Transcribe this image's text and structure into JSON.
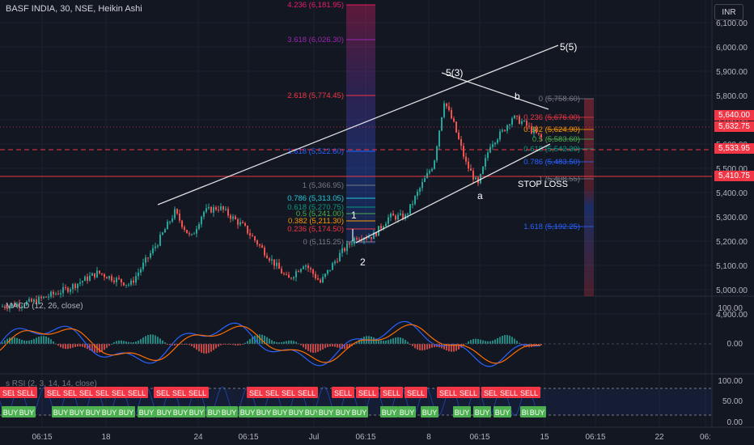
{
  "symbol_title": "BASF INDIA, 30, NSE, Heikin Ashi",
  "currency": "INR",
  "price_axis": [
    "6,100.00",
    "6,000.00",
    "5,900.00",
    "5,800.00",
    "5,700.00",
    "5,600.00",
    "5,500.00",
    "5,400.00",
    "5,300.00",
    "5,200.00",
    "5,100.00",
    "5,000.00",
    "4,900.00"
  ],
  "price_labels": [
    {
      "text": "5,640.00",
      "color": "#f23645"
    },
    {
      "text": "5,632.75",
      "color": "#f23645"
    },
    {
      "text": "5,533.95",
      "color": "#f23645"
    },
    {
      "text": "5,410.75",
      "color": "#f23645"
    }
  ],
  "fib_upper": [
    {
      "text": "4.236 (6,181.95)",
      "color": "#e91e63"
    },
    {
      "text": "3.618 (6,026.30)",
      "color": "#9c27b0"
    },
    {
      "text": "2.618 (5,774.45)",
      "color": "#f23645"
    },
    {
      "text": "1.618 (5,522.60)",
      "color": "#2962ff"
    },
    {
      "text": "1 (5,366.95)",
      "color": "#787b86"
    },
    {
      "text": "0.786 (5,313.05)",
      "color": "#26c6da"
    },
    {
      "text": "0.618 (5,270.75)",
      "color": "#089981"
    },
    {
      "text": "0.5 (5,241.00)",
      "color": "#4caf50"
    },
    {
      "text": "0.382 (5,211.30)",
      "color": "#ff9800"
    },
    {
      "text": "0.236 (5,174.50)",
      "color": "#f23645"
    },
    {
      "text": "0 (5,115.25)",
      "color": "#787b86"
    }
  ],
  "fib_right": [
    {
      "text": "0 (5,758.60)",
      "color": "#787b86"
    },
    {
      "text": "0.236 (5,676.00)",
      "color": "#f23645"
    },
    {
      "text": "0.382 (5,624.90)",
      "color": "#ff9800"
    },
    {
      "text": "0.5 (5,583.60)",
      "color": "#4caf50"
    },
    {
      "text": "0.618 (5,542.30)",
      "color": "#089981"
    },
    {
      "text": "0.786 (5,483.50)",
      "color": "#2962ff"
    },
    {
      "text": "1 (5,408.55)",
      "color": "#787b86"
    },
    {
      "text": "1.618 (5,192.25)",
      "color": "#2962ff"
    }
  ],
  "wave_labels": {
    "w5_5": "5(5)",
    "w5_3": "5(3)",
    "b": "b",
    "a": "a",
    "w1": "1",
    "w2": "2"
  },
  "stop_loss": "STOP LOSS",
  "macd": {
    "label": "MACD (12, 26, close)",
    "axis": [
      "100.00",
      "0.00"
    ]
  },
  "osc": {
    "label": "s RSI (2, 3, 14, 14, close)",
    "axis": [
      "100.00",
      "50.00",
      "0.00"
    ]
  },
  "signals": {
    "sell": "SELL",
    "buy": "BUY"
  },
  "time_axis": [
    "06:15",
    "18",
    "24",
    "06:15",
    "Jul",
    "06:15",
    "8",
    "06:15",
    "15",
    "06:15",
    "22",
    "06:"
  ],
  "colors": {
    "up": "#26a69a",
    "down": "#ef5350",
    "bg": "#131722"
  }
}
